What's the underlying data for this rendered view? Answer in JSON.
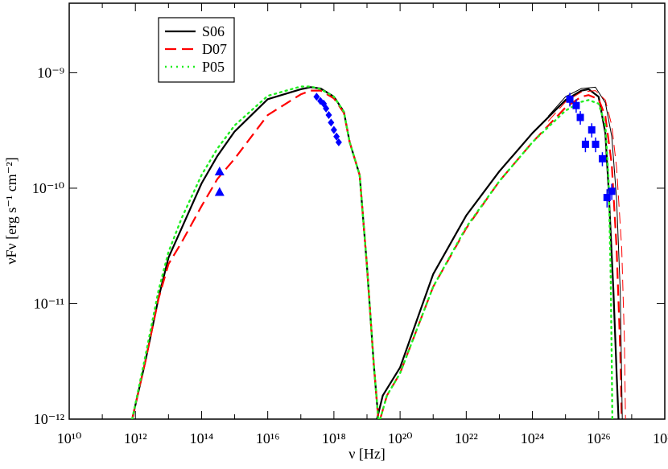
{
  "chart_data": {
    "type": "line",
    "x_label": "ν [Hz]",
    "y_label": "νFν [erg s⁻¹ cm⁻²]",
    "xscale": "log",
    "yscale": "log",
    "xlim": [
      10000000000.0,
      1e+28
    ],
    "ylim": [
      1e-12,
      4e-09
    ],
    "xticks": [
      {
        "value": 10000000000.0,
        "label": "10¹⁰"
      },
      {
        "value": 1000000000000.0,
        "label": "10¹²"
      },
      {
        "value": 100000000000000.0,
        "label": "10¹⁴"
      },
      {
        "value": 1e+16,
        "label": "10¹⁶"
      },
      {
        "value": 1e+18,
        "label": "10¹⁸"
      },
      {
        "value": 1e+20,
        "label": "10²⁰"
      },
      {
        "value": 1e+22,
        "label": "10²²"
      },
      {
        "value": 1e+24,
        "label": "10²⁴"
      },
      {
        "value": 1e+26,
        "label": "10²⁶"
      },
      {
        "value": 1e+28,
        "label": "10²⁸"
      }
    ],
    "xminorticks": [
      100000000000.0,
      10000000000000.0,
      1000000000000000.0,
      1e+17,
      1e+19,
      1e+21,
      1e+23,
      1e+25,
      1e+27
    ],
    "yticks": [
      {
        "value": 1e-12,
        "label": "10⁻¹²"
      },
      {
        "value": 1e-11,
        "label": "10⁻¹¹"
      },
      {
        "value": 1e-10,
        "label": "10⁻¹⁰"
      },
      {
        "value": 1e-09,
        "label": "10⁻⁹"
      }
    ],
    "legend": "upper left",
    "series": [
      {
        "name": "S06",
        "color": "#000000",
        "dash": "solid",
        "line_width": 2.2,
        "x": [
          800000000000.0,
          2000000000000.0,
          5000000000000.0,
          10000000000000.0,
          25000000000000.0,
          100000000000000.0,
          300000000000000.0,
          1000000000000000.0,
          1e+16,
          1e+17,
          2e+17,
          4e+17,
          1e+18,
          2e+18,
          3e+18,
          6e+18,
          1e+19,
          1.6e+19,
          2.2e+19,
          null,
          2e+19,
          3e+19,
          1e+20,
          1e+21,
          1e+22,
          1e+23,
          1e+24,
          1e+25,
          3e+25,
          5e+25,
          1e+26,
          1.6e+26,
          2e+26,
          2.8e+26,
          3.5e+26,
          4e+26
        ],
        "values": [
          1e-12,
          3.16e-12,
          1.12e-11,
          2.5e-11,
          4.5e-11,
          1.1e-10,
          1.9e-10,
          3.1e-10,
          5.9e-10,
          7.2e-10,
          7.5e-10,
          7.3e-10,
          6.2e-10,
          4.6e-10,
          2.5e-10,
          1.3e-10,
          2.1e-11,
          3e-12,
          1e-12,
          null,
          1e-12,
          1.6e-12,
          2.8e-12,
          1.8e-11,
          5.8e-11,
          1.4e-10,
          3e-10,
          5.8e-10,
          7e-10,
          7.2e-10,
          6.2e-10,
          3e-10,
          1e-10,
          1.3e-11,
          2.5e-12,
          1e-12
        ]
      },
      {
        "name": "D07",
        "color": "#ff0000",
        "dash": "dashed",
        "line_width": 2.2,
        "x": [
          800000000000.0,
          2000000000000.0,
          5000000000000.0,
          10000000000000.0,
          25000000000000.0,
          100000000000000.0,
          300000000000000.0,
          1000000000000000.0,
          1e+16,
          1e+17,
          2e+17,
          4e+17,
          1e+18,
          2e+18,
          3e+18,
          6e+18,
          1e+19,
          1.6e+19,
          2.2e+19,
          null,
          2.5e+19,
          4e+19,
          1e+20,
          1e+21,
          1e+22,
          1e+23,
          1e+24,
          1e+25,
          3e+25,
          5e+25,
          1e+26,
          1.6e+26,
          2.5e+26,
          3.5e+26,
          4.5e+26,
          5e+26
        ],
        "values": [
          1e-12,
          3.16e-12,
          1.1e-11,
          2.2e-11,
          3.4e-11,
          7e-11,
          1.2e-10,
          1.8e-10,
          4.3e-10,
          6.5e-10,
          7e-10,
          7e-10,
          6e-10,
          4.5e-10,
          2.5e-10,
          1.3e-10,
          2.1e-11,
          3e-12,
          1e-12,
          null,
          1e-12,
          1.6e-12,
          2.5e-12,
          1.4e-11,
          4.5e-11,
          1.15e-10,
          2.5e-10,
          5e-10,
          6.2e-10,
          6.4e-10,
          5.9e-10,
          4.2e-10,
          1.6e-10,
          3e-11,
          4e-12,
          1e-12
        ]
      },
      {
        "name": "P05",
        "color": "#22ee22",
        "dash": "dotted",
        "line_width": 2.4,
        "x": [
          800000000000.0,
          2000000000000.0,
          5000000000000.0,
          10000000000000.0,
          25000000000000.0,
          100000000000000.0,
          300000000000000.0,
          1000000000000000.0,
          1e+16,
          1e+17,
          2e+17,
          4e+17,
          1e+18,
          2e+18,
          3e+18,
          6e+18,
          1e+19,
          1.6e+19,
          2.2e+19,
          null,
          2.5e+19,
          4e+19,
          1e+20,
          1e+21,
          1e+22,
          1e+23,
          1e+24,
          1e+25,
          3e+25,
          5e+25,
          1e+26,
          1.6e+26,
          2e+26,
          2.3e+26,
          2.5e+26,
          2.6e+26
        ],
        "values": [
          1e-12,
          3.5e-12,
          1.3e-11,
          2.8e-11,
          5.5e-11,
          1.3e-10,
          2.2e-10,
          3.5e-10,
          6.3e-10,
          7.6e-10,
          7.6e-10,
          7.2e-10,
          6.2e-10,
          4.6e-10,
          2.5e-10,
          1.3e-10,
          2.1e-11,
          3e-12,
          1e-12,
          null,
          1e-12,
          1.6e-12,
          2.5e-12,
          1.4e-11,
          4.6e-11,
          1.15e-10,
          2.5e-10,
          4.7e-10,
          5.6e-10,
          5.8e-10,
          5.4e-10,
          3.5e-10,
          1.2e-10,
          2e-11,
          3e-12,
          1e-12
        ]
      },
      {
        "color": "#000000",
        "dash": "solid",
        "line_width": 1,
        "x": [
          3e+24,
          1e+25,
          3e+25,
          8e+25,
          1.6e+26,
          2.5e+26,
          3.5e+26,
          4.5e+26,
          5.2e+26
        ],
        "values": [
          4.2e-10,
          6.2e-10,
          7.3e-10,
          7.5e-10,
          5.5e-10,
          2.8e-10,
          8e-11,
          1.3e-11,
          1e-12
        ]
      },
      {
        "color": "#ff0000",
        "dash": "dashed",
        "line_width": 1,
        "x": [
          3e+24,
          1e+25,
          3e+25,
          8e+25,
          1.6e+26,
          2.5e+26,
          3.5e+26,
          5e+26,
          6e+26,
          6.5e+26
        ],
        "values": [
          3.8e-10,
          5.6e-10,
          6.8e-10,
          7e-10,
          5.8e-10,
          3.5e-10,
          1.5e-10,
          3e-11,
          5e-12,
          1e-12
        ]
      },
      {
        "color": "#0000ff",
        "marker": "triangle",
        "x": [
          350000000000000.0,
          350000000000000.0
        ],
        "values": [
          1.4e-10,
          9.3e-11
        ]
      },
      {
        "color": "#0000ff",
        "marker": "diamond",
        "x": [
          3e+17,
          3.9e+17,
          4.9e+17,
          5.8e+17,
          7e+17,
          8.2e+17,
          1e+18,
          1.2e+18,
          1.4e+18
        ],
        "values": [
          6.2e-10,
          5.7e-10,
          5.4e-10,
          4.9e-10,
          4.3e-10,
          3.7e-10,
          3.2e-10,
          2.8e-10,
          2.5e-10
        ]
      },
      {
        "color": "#0000ff",
        "marker": "square",
        "x": [
          1.35e+25,
          2.1e+25,
          2.8e+25,
          4e+25,
          6.2e+25,
          8.1e+25,
          1.3e+26,
          1.8e+26,
          2.5e+26
        ],
        "values": [
          5.9e-10,
          5.2e-10,
          4.1e-10,
          2.4e-10,
          3.2e-10,
          2.4e-10,
          1.8e-10,
          8.3e-11,
          9.4e-11
        ],
        "errors": [
          8e-11,
          7e-11,
          5.5e-11,
          3.5e-11,
          4.5e-11,
          3.5e-11,
          2.5e-11,
          1.5e-11,
          1.5e-11
        ]
      }
    ]
  }
}
